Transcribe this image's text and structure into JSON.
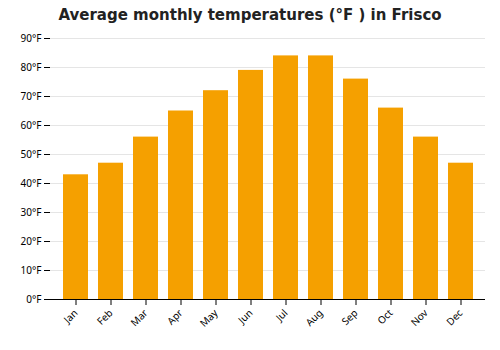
{
  "chart_data": {
    "type": "bar",
    "title": "Average monthly temperatures (°F ) in Frisco",
    "categories": [
      "Jan",
      "Feb",
      "Mar",
      "Apr",
      "May",
      "Jun",
      "Jul",
      "Aug",
      "Sep",
      "Oct",
      "Nov",
      "Dec"
    ],
    "values": [
      43,
      47,
      56,
      65,
      72,
      79,
      84,
      84,
      76,
      66,
      56,
      47
    ],
    "color": "#F5A000",
    "ylim": [
      0,
      90
    ],
    "yticks": [
      {
        "value": 0,
        "label": "0°F"
      },
      {
        "value": 10,
        "label": "10°F"
      },
      {
        "value": 20,
        "label": "20°F"
      },
      {
        "value": 30,
        "label": "30°F"
      },
      {
        "value": 40,
        "label": "40°F"
      },
      {
        "value": 50,
        "label": "50°F"
      },
      {
        "value": 60,
        "label": "60°F"
      },
      {
        "value": 70,
        "label": "70°F"
      },
      {
        "value": 80,
        "label": "80°F"
      },
      {
        "value": 90,
        "label": "90°F"
      }
    ],
    "grid": true
  }
}
